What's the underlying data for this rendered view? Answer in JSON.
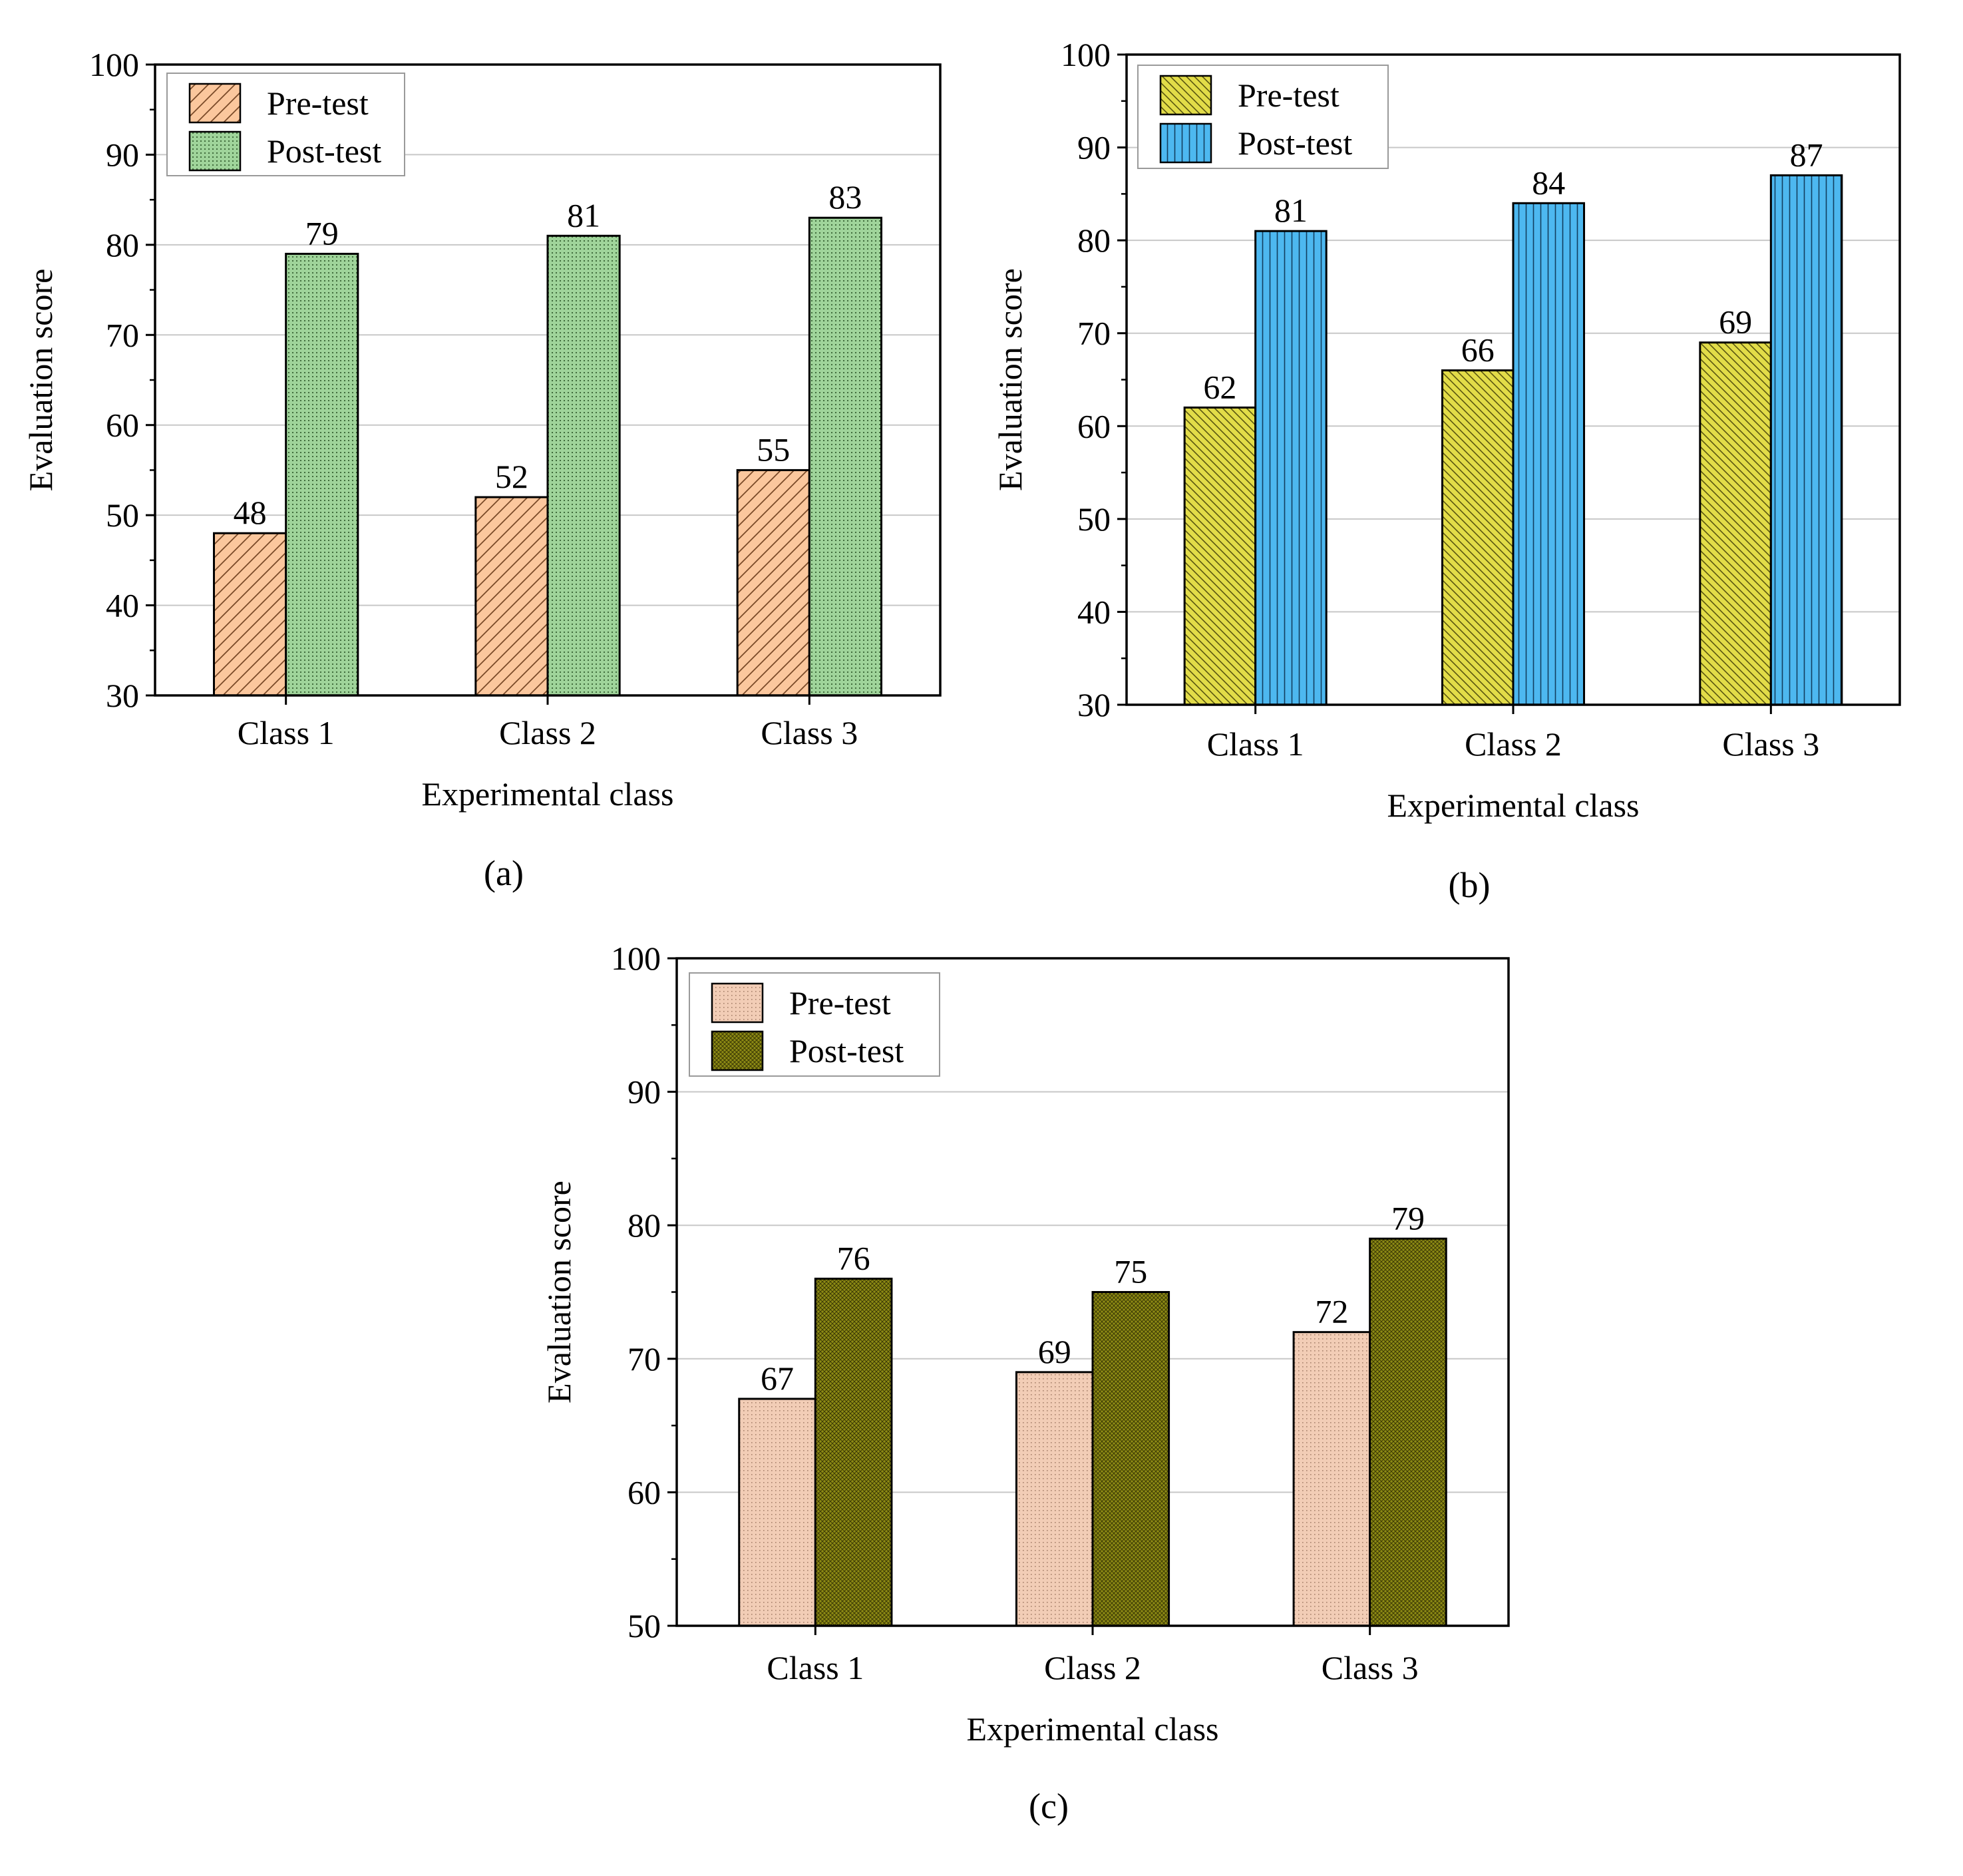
{
  "chart_data": [
    {
      "type": "bar",
      "panel_label": "(a)",
      "xlabel": "Experimental class",
      "ylabel": "Evaluation score",
      "categories": [
        "Class 1",
        "Class 2",
        "Class 3"
      ],
      "ylim": [
        30,
        100
      ],
      "yticks": [
        "30",
        "40",
        "50",
        "60",
        "70",
        "80",
        "90",
        "100"
      ],
      "grid": "horizontal",
      "legend_position": "top-left",
      "series": [
        {
          "name": "Pre-test",
          "values": [
            48,
            52,
            55
          ],
          "labels": [
            "48",
            "52",
            "55"
          ],
          "color": "#FBC79D",
          "pattern": "diagonal-hatch"
        },
        {
          "name": "Post-test",
          "values": [
            79,
            81,
            83
          ],
          "labels": [
            "79",
            "81",
            "83"
          ],
          "color": "#9FD49A",
          "pattern": "fine-dots"
        }
      ]
    },
    {
      "type": "bar",
      "panel_label": "(b)",
      "xlabel": "Experimental class",
      "ylabel": "Evaluation score",
      "categories": [
        "Class 1",
        "Class 2",
        "Class 3"
      ],
      "ylim": [
        30,
        100
      ],
      "yticks": [
        "30",
        "40",
        "50",
        "60",
        "70",
        "80",
        "90",
        "100"
      ],
      "grid": "horizontal",
      "legend_position": "top-left",
      "series": [
        {
          "name": "Pre-test",
          "values": [
            62,
            66,
            69
          ],
          "labels": [
            "62",
            "66",
            "69"
          ],
          "color": "#E2DC48",
          "pattern": "dense-diagonal-hatch"
        },
        {
          "name": "Post-test",
          "values": [
            81,
            84,
            87
          ],
          "labels": [
            "81",
            "84",
            "87"
          ],
          "color": "#4DB8F0",
          "pattern": "vertical-lines"
        }
      ]
    },
    {
      "type": "bar",
      "panel_label": "(c)",
      "xlabel": "Experimental class",
      "ylabel": "Evaluation score",
      "categories": [
        "Class 1",
        "Class 2",
        "Class 3"
      ],
      "ylim": [
        50,
        100
      ],
      "yticks": [
        "50",
        "60",
        "70",
        "80",
        "90",
        "100"
      ],
      "grid": "horizontal",
      "legend_position": "top-left",
      "series": [
        {
          "name": "Pre-test",
          "values": [
            67,
            69,
            72
          ],
          "labels": [
            "67",
            "69",
            "72"
          ],
          "color": "#F2CDB6",
          "pattern": "fine-dots"
        },
        {
          "name": "Post-test",
          "values": [
            76,
            75,
            79
          ],
          "labels": [
            "76",
            "75",
            "79"
          ],
          "color": "#8D8A14",
          "pattern": "crosshatch"
        }
      ]
    }
  ]
}
